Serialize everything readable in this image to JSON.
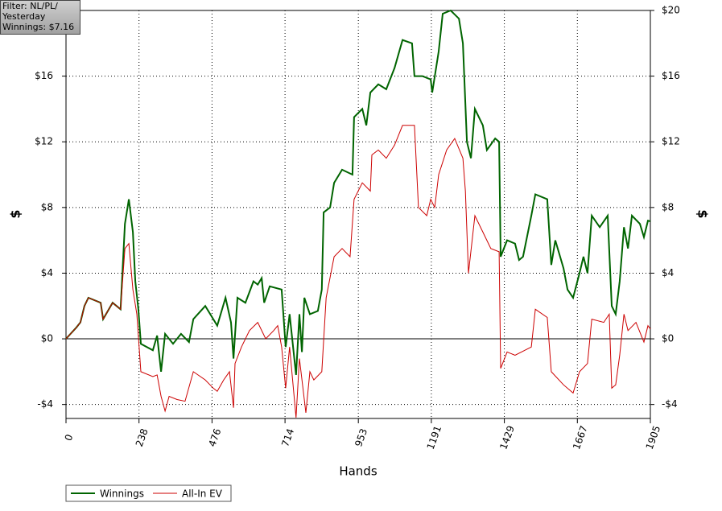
{
  "chart_data": {
    "type": "line",
    "xlabel": "Hands",
    "ylabel": "$",
    "y2label": "$",
    "xlim": [
      0,
      1905
    ],
    "ylim": [
      -4.85,
      20
    ],
    "y2lim": [
      -4.85,
      20
    ],
    "xticks": [
      0,
      238,
      476,
      714,
      953,
      1191,
      1429,
      1667,
      1905
    ],
    "yticks": [
      {
        "value": -4,
        "label": "-$4"
      },
      {
        "value": 0,
        "label": "$0"
      },
      {
        "value": 4,
        "label": "$4"
      },
      {
        "value": 8,
        "label": "$8"
      },
      {
        "value": 12,
        "label": "$12"
      },
      {
        "value": 16,
        "label": "$16"
      }
    ],
    "y2ticks": [
      {
        "value": -4,
        "label": "-$4"
      },
      {
        "value": 0,
        "label": "$0"
      },
      {
        "value": 4,
        "label": "$4"
      },
      {
        "value": 8,
        "label": "$8"
      },
      {
        "value": 12,
        "label": "$12"
      },
      {
        "value": 16,
        "label": "$16"
      },
      {
        "value": 20,
        "label": "$20"
      }
    ],
    "grid": true,
    "legend": "bottom-left",
    "series": [
      {
        "name": "Winnings",
        "color": "#006400",
        "x": [
          0,
          34,
          47,
          60,
          73,
          113,
          121,
          152,
          178,
          192,
          205,
          218,
          226,
          236,
          244,
          283,
          297,
          310,
          323,
          349,
          375,
          401,
          415,
          454,
          493,
          520,
          538,
          546,
          559,
          585,
          611,
          625,
          638,
          646,
          664,
          703,
          716,
          729,
          750,
          761,
          769,
          777,
          795,
          821,
          834,
          840,
          861,
          874,
          900,
          934,
          939,
          966,
          979,
          992,
          1018,
          1044,
          1071,
          1097,
          1128,
          1136,
          1162,
          1189,
          1194,
          1215,
          1228,
          1254,
          1281,
          1294,
          1307,
          1320,
          1333,
          1359,
          1372,
          1399,
          1412,
          1417,
          1438,
          1464,
          1477,
          1490,
          1517,
          1530,
          1569,
          1582,
          1595,
          1622,
          1635,
          1653,
          1674,
          1687,
          1700,
          1714,
          1740,
          1766,
          1779,
          1792,
          1805,
          1819,
          1832,
          1845,
          1871,
          1884,
          1897,
          1905
        ],
        "values": [
          0,
          0.7,
          1.0,
          2.0,
          2.5,
          2.2,
          1.2,
          2.2,
          1.8,
          7.0,
          8.5,
          6.5,
          3.5,
          1.8,
          -0.3,
          -0.7,
          0.2,
          -2.0,
          0.3,
          -0.3,
          0.3,
          -0.2,
          1.2,
          2.0,
          0.8,
          2.5,
          1.0,
          -1.2,
          2.5,
          2.2,
          3.5,
          3.3,
          3.7,
          2.2,
          3.2,
          3.0,
          -0.5,
          1.5,
          -2.2,
          1.5,
          -0.8,
          2.5,
          1.5,
          1.7,
          3.0,
          7.7,
          8.0,
          9.5,
          10.3,
          10.0,
          13.5,
          14.0,
          13.0,
          15.0,
          15.5,
          15.2,
          16.5,
          18.2,
          18.0,
          16.0,
          16.0,
          15.8,
          15.0,
          17.5,
          19.8,
          20.0,
          19.5,
          18.0,
          12.0,
          11.0,
          14.0,
          13.0,
          11.5,
          12.2,
          12.0,
          5.0,
          6.0,
          5.8,
          4.8,
          5.0,
          7.5,
          8.8,
          8.5,
          4.5,
          6.0,
          4.3,
          3.0,
          2.5,
          4.0,
          5.0,
          4.0,
          7.5,
          6.8,
          7.5,
          2.0,
          1.5,
          3.5,
          6.8,
          5.5,
          7.5,
          7.0,
          6.2,
          7.2,
          7.16
        ]
      },
      {
        "name": "All-In EV",
        "color": "#cc0000",
        "x": [
          0,
          34,
          47,
          60,
          73,
          113,
          121,
          152,
          178,
          192,
          205,
          218,
          231,
          244,
          283,
          297,
          310,
          323,
          336,
          362,
          388,
          415,
          454,
          480,
          493,
          514,
          533,
          546,
          551,
          572,
          598,
          625,
          651,
          677,
          690,
          703,
          716,
          729,
          750,
          761,
          782,
          795,
          808,
          834,
          848,
          874,
          900,
          926,
          939,
          966,
          992,
          997,
          1018,
          1044,
          1071,
          1097,
          1136,
          1149,
          1176,
          1189,
          1202,
          1215,
          1241,
          1267,
          1294,
          1302,
          1312,
          1333,
          1359,
          1385,
          1412,
          1417,
          1438,
          1464,
          1517,
          1530,
          1569,
          1582,
          1622,
          1653,
          1674,
          1700,
          1714,
          1753,
          1771,
          1779,
          1792,
          1805,
          1819,
          1832,
          1858,
          1884,
          1897,
          1905
        ],
        "values": [
          0,
          0.7,
          1.0,
          2.0,
          2.5,
          2.2,
          1.2,
          2.2,
          1.8,
          5.5,
          5.8,
          3.0,
          1.5,
          -2.0,
          -2.3,
          -2.2,
          -3.5,
          -4.4,
          -3.5,
          -3.7,
          -3.8,
          -2.0,
          -2.5,
          -3.0,
          -3.2,
          -2.5,
          -2.0,
          -4.2,
          -1.5,
          -0.5,
          0.5,
          1.0,
          0,
          0.5,
          0.8,
          -0.5,
          -3.0,
          -0.5,
          -4.8,
          -1.2,
          -4.5,
          -2.0,
          -2.5,
          -2.0,
          2.5,
          5.0,
          5.5,
          5.0,
          8.5,
          9.5,
          9.0,
          11.2,
          11.5,
          11.0,
          11.8,
          13.0,
          13.0,
          8.0,
          7.5,
          8.5,
          8.0,
          10.0,
          11.5,
          12.2,
          11.0,
          9.0,
          4.0,
          7.5,
          6.5,
          5.5,
          5.3,
          -1.8,
          -0.8,
          -1.0,
          -0.5,
          1.8,
          1.3,
          -2.0,
          -2.8,
          -3.3,
          -2.0,
          -1.5,
          1.2,
          1.0,
          1.5,
          -3.0,
          -2.8,
          -1.0,
          1.5,
          0.5,
          1.0,
          -0.2,
          0.8,
          0.6
        ]
      }
    ]
  },
  "filter_box": [
    "Filter: NL/PL/",
    "Yesterday",
    "Winnings: $7.16"
  ]
}
